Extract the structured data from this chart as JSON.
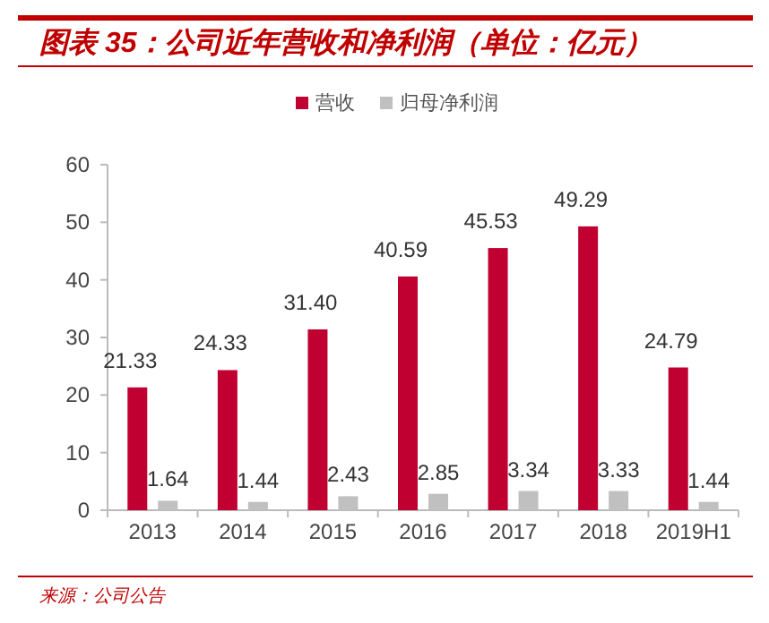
{
  "chart_data": {
    "type": "bar",
    "title": "图表 35：公司近年营收和净利润（单位：亿元）",
    "categories": [
      "2013",
      "2014",
      "2015",
      "2016",
      "2017",
      "2018",
      "2019H1"
    ],
    "series": [
      {
        "name": "营收",
        "color": "#c00030",
        "values": [
          21.33,
          24.33,
          31.4,
          40.59,
          45.53,
          49.29,
          24.79
        ],
        "value_labels": [
          "21.33",
          "24.33",
          "31.40",
          "40.59",
          "45.53",
          "49.29",
          "24.79"
        ]
      },
      {
        "name": "归母净利润",
        "color": "#c0c0c0",
        "values": [
          1.64,
          1.44,
          2.43,
          2.85,
          3.34,
          3.33,
          1.44
        ],
        "value_labels": [
          "1.64",
          "1.44",
          "2.43",
          "2.85",
          "3.34",
          "3.33",
          "1.44"
        ]
      }
    ],
    "ylim": [
      0,
      60
    ],
    "yticks": [
      0,
      10,
      20,
      30,
      40,
      50,
      60
    ],
    "grid": false,
    "legend": "top",
    "annotations": [
      "来源：公司公告"
    ]
  }
}
